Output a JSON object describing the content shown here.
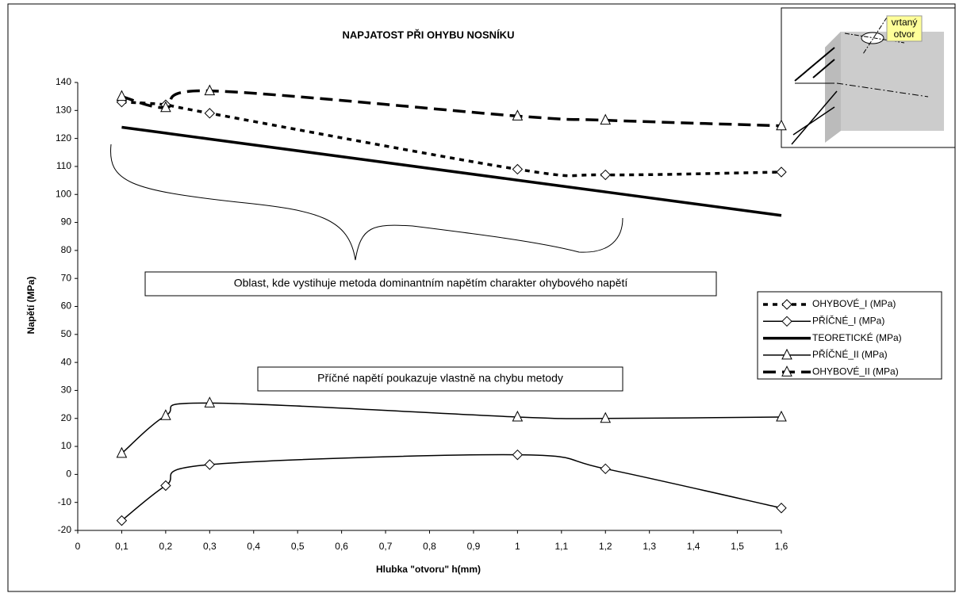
{
  "chart_data": {
    "type": "line",
    "title": "NAPJATOST PŘI OHYBU NOSNÍKU",
    "x_label": "Hlubka \"otvoru\" h(mm)",
    "y_label": "Napětí (MPa)",
    "x": [
      0.1,
      0.2,
      0.3,
      1,
      1.2,
      1.6
    ],
    "series": [
      {
        "name": "OHYBOVÉ_I (MPa)",
        "color": "#000000",
        "line_style": "dotted",
        "marker": "diamond",
        "values": [
          133,
          132,
          129,
          109,
          107,
          108
        ]
      },
      {
        "name": "PŘÍČNÉ_I (MPa)",
        "color": "#000000",
        "line_style": "solid",
        "marker": "diamond",
        "values": [
          -16.5,
          -4,
          3.5,
          7,
          2,
          -12
        ]
      },
      {
        "name": "TEORETICKÉ (MPa)",
        "color": "#000000",
        "line_style": "thick",
        "marker": null,
        "values": [
          124,
          121.9,
          119.8,
          105.1,
          100.9,
          92.5
        ]
      },
      {
        "name": "PŘÍČNÉ_II (MPa)",
        "color": "#000000",
        "line_style": "solid",
        "marker": "triangle",
        "values": [
          7.5,
          21,
          25.5,
          20.5,
          20,
          20.5
        ]
      },
      {
        "name": "OHYBOVÉ_II (MPa)",
        "color": "#000000",
        "line_style": "dashed",
        "marker": "triangle",
        "values": [
          135,
          131,
          137,
          128,
          126.5,
          124.5
        ]
      }
    ],
    "xlim": [
      0,
      1.6
    ],
    "xticks": [
      0,
      {
        "value": 0.1,
        "label": "0,1"
      },
      {
        "value": 0.2,
        "label": "0,2"
      },
      {
        "value": 0.3,
        "label": "0,3"
      },
      {
        "value": 0.4,
        "label": "0,4"
      },
      {
        "value": 0.5,
        "label": "0,5"
      },
      {
        "value": 0.6,
        "label": "0,6"
      },
      {
        "value": 0.7,
        "label": "0,7"
      },
      {
        "value": 0.8,
        "label": "0,8"
      },
      {
        "value": 0.9,
        "label": "0,9"
      },
      1,
      {
        "value": 1.1,
        "label": "1,1"
      },
      {
        "value": 1.2,
        "label": "1,2"
      },
      {
        "value": 1.3,
        "label": "1,3"
      },
      {
        "value": 1.4,
        "label": "1,4"
      },
      {
        "value": 1.5,
        "label": "1,5"
      },
      {
        "value": 1.6,
        "label": "1,6"
      }
    ],
    "ylim": [
      -20,
      140
    ],
    "yticks": [
      -20,
      -10,
      0,
      10,
      20,
      30,
      40,
      50,
      60,
      70,
      80,
      90,
      100,
      110,
      120,
      130,
      140
    ],
    "grid": false,
    "legend": "right",
    "annotations": [
      "Oblast, kde vystihuje metoda dominantním napětím charakter ohybového napětí",
      "Příčné napětí poukazuje vlastně na chybu metody"
    ],
    "inset_label": [
      "vrtaný",
      "otvor"
    ]
  }
}
